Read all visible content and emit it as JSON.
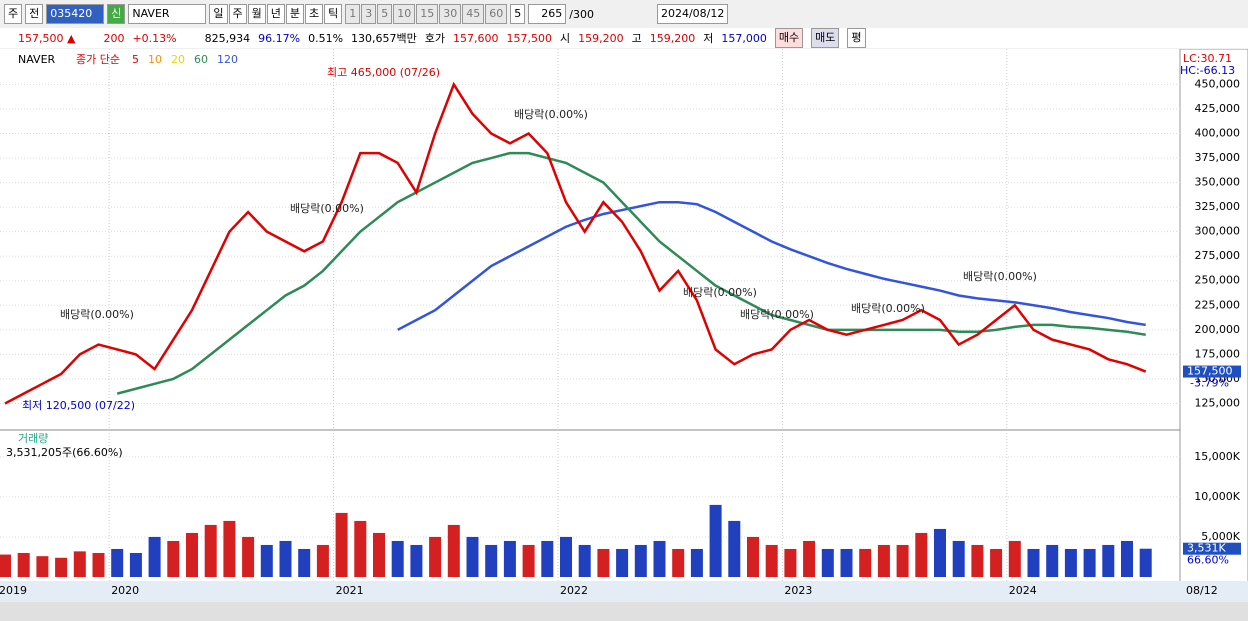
{
  "toolbar": {
    "period": "주",
    "prev": "전",
    "code": "035420",
    "market": "신",
    "name": "NAVER",
    "units": [
      "일",
      "주",
      "월",
      "년",
      "분",
      "초",
      "틱"
    ],
    "intervals": [
      "1",
      "3",
      "5",
      "10",
      "15",
      "30",
      "45",
      "60"
    ],
    "interval_select": "5",
    "count": "265",
    "count_max": "/300",
    "date": "2024/08/12"
  },
  "quote_bar": {
    "price": "157,500 ▲",
    "change": "200",
    "change_rate": "+0.13%",
    "volume": "825,934",
    "volume_ratio": "96.17%",
    "turnover": "0.51%",
    "amount": "130,657백만",
    "ask_label": "호가",
    "ask": "157,600",
    "bid": "157,500",
    "open_label": "시",
    "open": "159,200",
    "high_label": "고",
    "high": "159,200",
    "low_label": "저",
    "low": "157,000",
    "buy": "매수",
    "sell": "매도",
    "avg": "평"
  },
  "chart_data": [
    {
      "type": "line",
      "title": "NAVER",
      "legend_prefix": "종가 단순",
      "categories": [
        "2019",
        null,
        null,
        null,
        null,
        null,
        "2020",
        null,
        null,
        null,
        null,
        null,
        null,
        null,
        null,
        null,
        null,
        null,
        "2021",
        null,
        null,
        null,
        null,
        null,
        null,
        null,
        null,
        null,
        null,
        null,
        "2022",
        null,
        null,
        null,
        null,
        null,
        null,
        null,
        null,
        null,
        null,
        null,
        "2023",
        null,
        null,
        null,
        null,
        null,
        null,
        null,
        null,
        null,
        null,
        null,
        "2024",
        null,
        null,
        null,
        null,
        null,
        null,
        null
      ],
      "series": [
        {
          "name": "5",
          "color": "#e00000",
          "values": [
            125000,
            135000,
            145000,
            155000,
            175000,
            185000,
            180000,
            175000,
            160000,
            190000,
            220000,
            260000,
            300000,
            320000,
            300000,
            290000,
            280000,
            290000,
            330000,
            380000,
            380000,
            370000,
            340000,
            400000,
            450000,
            420000,
            400000,
            390000,
            400000,
            380000,
            330000,
            300000,
            330000,
            310000,
            280000,
            240000,
            260000,
            230000,
            180000,
            165000,
            175000,
            180000,
            200000,
            210000,
            200000,
            195000,
            200000,
            205000,
            210000,
            220000,
            210000,
            185000,
            195000,
            210000,
            225000,
            200000,
            190000,
            185000,
            180000,
            170000,
            165000,
            157500
          ]
        },
        {
          "name": "60",
          "color": "#2e8b57",
          "values": [
            null,
            null,
            null,
            null,
            null,
            null,
            135000,
            140000,
            145000,
            150000,
            160000,
            175000,
            190000,
            205000,
            220000,
            235000,
            245000,
            260000,
            280000,
            300000,
            315000,
            330000,
            340000,
            350000,
            360000,
            370000,
            375000,
            380000,
            380000,
            375000,
            370000,
            360000,
            350000,
            330000,
            310000,
            290000,
            275000,
            260000,
            245000,
            235000,
            225000,
            215000,
            210000,
            205000,
            200000,
            200000,
            200000,
            200000,
            200000,
            200000,
            200000,
            198000,
            198000,
            200000,
            203000,
            205000,
            205000,
            203000,
            202000,
            200000,
            198000,
            195000
          ]
        },
        {
          "name": "120",
          "color": "#3355dd",
          "values": [
            null,
            null,
            null,
            null,
            null,
            null,
            null,
            null,
            null,
            null,
            null,
            null,
            null,
            null,
            null,
            null,
            null,
            null,
            null,
            null,
            null,
            200000,
            210000,
            220000,
            235000,
            250000,
            265000,
            275000,
            285000,
            295000,
            305000,
            312000,
            318000,
            322000,
            326000,
            330000,
            330000,
            328000,
            320000,
            310000,
            300000,
            290000,
            282000,
            275000,
            268000,
            262000,
            257000,
            252000,
            248000,
            244000,
            240000,
            235000,
            232000,
            230000,
            228000,
            225000,
            222000,
            218000,
            215000,
            212000,
            208000,
            205000
          ]
        }
      ],
      "other_legend": [
        {
          "name": "10",
          "color": "#ff8c00"
        },
        {
          "name": "20",
          "color": "#e6d800"
        }
      ],
      "ylim": [
        100000,
        483000
      ],
      "yticks": [
        {
          "value": 125000,
          "label": "125,000"
        },
        {
          "value": 150000,
          "label": "150,000"
        },
        {
          "value": 175000,
          "label": "175,000"
        },
        {
          "value": 200000,
          "label": "200,000"
        },
        {
          "value": 225000,
          "label": "225,000"
        },
        {
          "value": 250000,
          "label": "250,000"
        },
        {
          "value": 275000,
          "label": "275,000"
        },
        {
          "value": 300000,
          "label": "300,000"
        },
        {
          "value": 325000,
          "label": "325,000"
        },
        {
          "value": 350000,
          "label": "350,000"
        },
        {
          "value": 375000,
          "label": "375,000"
        },
        {
          "value": 400000,
          "label": "400,000"
        },
        {
          "value": 425000,
          "label": "425,000"
        },
        {
          "value": 450000,
          "label": "450,000"
        }
      ],
      "grid": true,
      "lc": "LC:30.71",
      "hc": "HC:-66.13",
      "last_label": "157,500",
      "last_change": "-3.79%",
      "end_date": "08/12",
      "annotations": [
        "최고 465,000 (07/26)",
        "최저 120,500 (07/22)",
        "배당락(0.00%)",
        "배당락(0.00%)",
        "배당락(0.00%)",
        "배당락(0.00%)",
        "배당락(0.00%)",
        "배당락(0.00%)",
        "배당락(0.00%)"
      ]
    },
    {
      "type": "bar",
      "title": "거래량",
      "subtitle": "3,531,205주(66.60%)",
      "up_color": "#d42020",
      "down_color": "#2040c0",
      "values": [
        2800000,
        3000000,
        2600000,
        2400000,
        3200000,
        3000000,
        3500000,
        3000000,
        5000000,
        4500000,
        5500000,
        6500000,
        7000000,
        5000000,
        4000000,
        4500000,
        3500000,
        4000000,
        8000000,
        7000000,
        5500000,
        4500000,
        4000000,
        5000000,
        6500000,
        5000000,
        4000000,
        4500000,
        4000000,
        4500000,
        5000000,
        4000000,
        3500000,
        3500000,
        4000000,
        4500000,
        3500000,
        3500000,
        9000000,
        7000000,
        5000000,
        4000000,
        3500000,
        4500000,
        3500000,
        3500000,
        3500000,
        4000000,
        4000000,
        5500000,
        6000000,
        4500000,
        4000000,
        3500000,
        4500000,
        3500000,
        4000000,
        3500000,
        3500000,
        4000000,
        4500000,
        3531205
      ],
      "ylim": [
        0,
        18100000
      ],
      "yticks": [
        {
          "value": 5000000,
          "label": "5,000K"
        },
        {
          "value": 10000000,
          "label": "10,000K"
        },
        {
          "value": 15000000,
          "label": "15,000K"
        }
      ],
      "last_label": "3,531K",
      "ratio_label": "66.60%"
    }
  ]
}
